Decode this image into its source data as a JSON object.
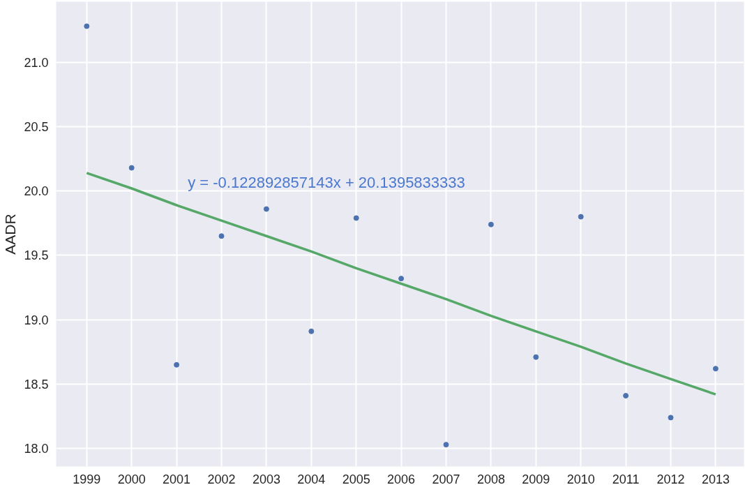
{
  "chart_data": {
    "type": "scatter",
    "ylabel": "AADR",
    "categories": [
      "1999",
      "2000",
      "2001",
      "2002",
      "2003",
      "2004",
      "2005",
      "2006",
      "2007",
      "2008",
      "2009",
      "2010",
      "2011",
      "2012",
      "2013"
    ],
    "series": [
      {
        "color": "#4c72b0",
        "marker": "circle",
        "values": [
          21.28,
          20.18,
          18.65,
          19.65,
          19.86,
          18.91,
          19.79,
          19.32,
          18.03,
          19.74,
          18.71,
          19.8,
          18.41,
          18.24,
          18.62
        ]
      },
      {
        "type": "line",
        "color": "#55a868",
        "values": [
          20.14,
          20.02,
          19.89,
          19.77,
          19.65,
          19.53,
          19.4,
          19.28,
          19.16,
          19.03,
          18.91,
          18.79,
          18.66,
          18.54,
          18.42
        ]
      }
    ],
    "annotations": [
      "y = -0.122892857143x + 20.1395833333"
    ],
    "ylim": [
      17.86,
      21.47
    ],
    "yticks": [
      {
        "value": 18.0,
        "label": "18.0"
      },
      {
        "value": 18.5,
        "label": "18.5"
      },
      {
        "value": 19.0,
        "label": "19.0"
      },
      {
        "value": 19.5,
        "label": "19.5"
      },
      {
        "value": 20.0,
        "label": "20.0"
      },
      {
        "value": 20.5,
        "label": "20.5"
      },
      {
        "value": 21.0,
        "label": "21.0"
      }
    ],
    "grid": true
  }
}
